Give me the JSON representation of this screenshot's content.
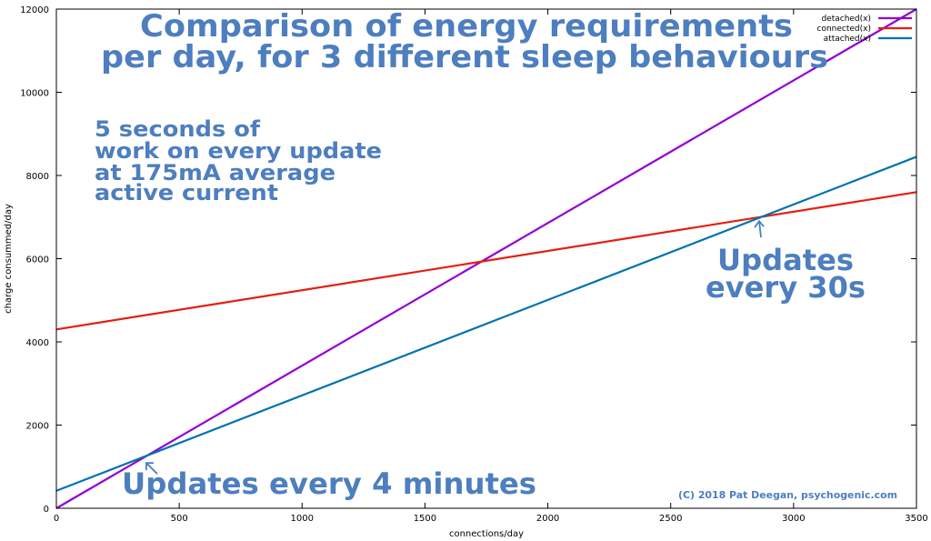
{
  "chart_data": {
    "type": "line",
    "title_lines": [
      "Comparison of energy requirements",
      "per day, for 3 different sleep behaviours"
    ],
    "xlabel": "connections/day",
    "ylabel": "charge consummed/day",
    "xlim": [
      0,
      3500
    ],
    "ylim": [
      0,
      12000
    ],
    "x_ticks": [
      0,
      500,
      1000,
      1500,
      2000,
      2500,
      3000,
      3500
    ],
    "y_ticks": [
      0,
      2000,
      4000,
      6000,
      8000,
      10000,
      12000
    ],
    "legend_position": "top-right",
    "series": [
      {
        "name": "detached(x)",
        "color": "#9400d3",
        "x": [
          0,
          3500
        ],
        "y": [
          0,
          12000
        ]
      },
      {
        "name": "connected(x)",
        "color": "#e51e10",
        "x": [
          0,
          3500
        ],
        "y": [
          4300,
          7600
        ]
      },
      {
        "name": "attached(x)",
        "color": "#0072b2",
        "x": [
          0,
          3500
        ],
        "y": [
          420,
          8450
        ]
      }
    ],
    "annotations": {
      "note_lines": [
        "5 seconds of",
        "work on every update",
        "at 175mA average",
        "active current"
      ],
      "updates_30s_lines": [
        "Updates",
        "every 30s"
      ],
      "updates_30s_arrow_to": [
        2860,
        6990
      ],
      "updates_4min": "Updates every 4 minutes",
      "updates_4min_arrow_to": [
        355,
        1220
      ],
      "credit": "(C) 2018 Pat Deegan, psychogenic.com"
    }
  }
}
